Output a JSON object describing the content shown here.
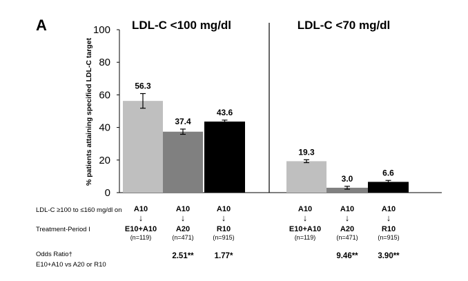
{
  "panel_label": "A",
  "chart_data": {
    "type": "bar",
    "ylabel": "% patients attaining specified LDL-C target",
    "ylim": [
      0,
      100
    ],
    "yticks": [
      0,
      20,
      40,
      60,
      80,
      100
    ],
    "panels": [
      {
        "title": "LDL-C <100 mg/dl",
        "categories": [
          "E10+A10",
          "A20",
          "R10"
        ],
        "values": [
          56.3,
          37.4,
          43.6
        ],
        "value_labels": [
          "56.3",
          "37.4",
          "43.6"
        ],
        "error": [
          4.5,
          1.6,
          0.9
        ],
        "colors": [
          "#bfbfbf",
          "#808080",
          "#000000"
        ]
      },
      {
        "title": "LDL-C <70 mg/dl",
        "categories": [
          "E10+A10",
          "A20",
          "R10"
        ],
        "values": [
          19.3,
          3.0,
          6.6
        ],
        "value_labels": [
          "19.3",
          "3.0",
          "6.6"
        ],
        "error": [
          0.9,
          0.9,
          0.9
        ],
        "colors": [
          "#bfbfbf",
          "#808080",
          "#000000"
        ]
      }
    ]
  },
  "footer": {
    "period_label_1": "LDL-C ≥100 to ≤160 mg/dl on",
    "period_label_2": "Treatment-Period I",
    "odds_label_1": "Odds Ratio†",
    "odds_label_2": "E10+A10 vs A20 or R10",
    "arrow": "↓",
    "groups": [
      {
        "from": "A10",
        "to": "E10+A10",
        "n": "(n=119)"
      },
      {
        "from": "A10",
        "to": "A20",
        "n": "(n=471)"
      },
      {
        "from": "A10",
        "to": "R10",
        "n": "(n=915)"
      }
    ],
    "odds": [
      [
        "",
        "2.51**",
        "1.77*"
      ],
      [
        "",
        "9.46**",
        "3.90**"
      ]
    ]
  }
}
